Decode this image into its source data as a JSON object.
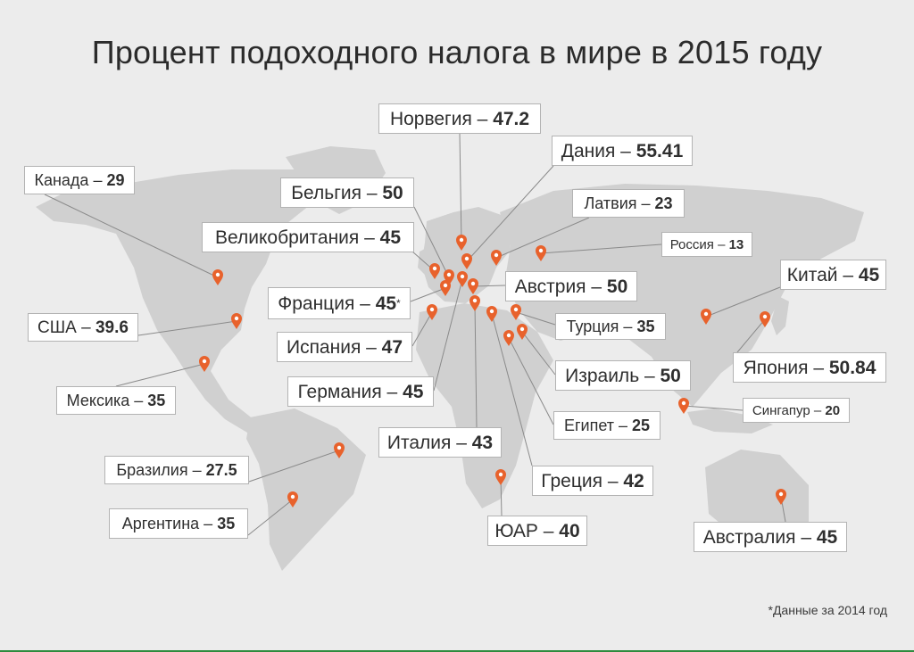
{
  "title": "Процент подоходного налога в мире в 2015 году",
  "footnote": "*Данные за 2014 год",
  "colors": {
    "background": "#ececec",
    "land": "#d0d0d0",
    "marker": "#e8622c",
    "leader": "#8a8a8a",
    "accent_line": "#2e8b3e"
  },
  "countries": [
    {
      "id": "norway",
      "name": "Норвегия",
      "value": "47.2",
      "marker": "map-pin-icon"
    },
    {
      "id": "denmark",
      "name": "Дания",
      "value": "55.41",
      "marker": "map-pin-icon"
    },
    {
      "id": "belgium",
      "name": "Бельгия",
      "value": "50",
      "marker": "map-pin-icon"
    },
    {
      "id": "latvia",
      "name": "Латвия",
      "value": "23",
      "marker": "map-pin-icon"
    },
    {
      "id": "uk",
      "name": "Великобритания",
      "value": "45",
      "marker": "map-pin-icon"
    },
    {
      "id": "russia",
      "name": "Россия",
      "value": "13",
      "marker": "map-pin-icon"
    },
    {
      "id": "canada",
      "name": "Канада",
      "value": "29",
      "marker": "map-pin-icon"
    },
    {
      "id": "china",
      "name": "Китай",
      "value": "45",
      "marker": "map-pin-icon"
    },
    {
      "id": "france",
      "name": "Франция",
      "value": "45",
      "note": "*",
      "marker": "map-pin-icon"
    },
    {
      "id": "austria",
      "name": "Австрия",
      "value": "50",
      "marker": "map-pin-icon"
    },
    {
      "id": "usa",
      "name": "США",
      "value": "39.6",
      "marker": "map-pin-icon"
    },
    {
      "id": "turkey",
      "name": "Турция",
      "value": "35",
      "marker": "map-pin-icon"
    },
    {
      "id": "spain",
      "name": "Испания",
      "value": "47",
      "marker": "map-pin-icon"
    },
    {
      "id": "japan",
      "name": "Япония",
      "value": "50.84",
      "marker": "map-pin-icon"
    },
    {
      "id": "israel",
      "name": "Израиль",
      "value": "50",
      "marker": "map-pin-icon"
    },
    {
      "id": "mexico",
      "name": "Мексика",
      "value": "35",
      "marker": "map-pin-icon"
    },
    {
      "id": "germany",
      "name": "Германия",
      "value": "45",
      "marker": "map-pin-icon"
    },
    {
      "id": "singapore",
      "name": "Сингапур",
      "value": "20",
      "marker": "map-pin-icon"
    },
    {
      "id": "egypt",
      "name": "Египет",
      "value": "25",
      "marker": "map-pin-icon"
    },
    {
      "id": "italy",
      "name": "Италия",
      "value": "43",
      "marker": "map-pin-icon"
    },
    {
      "id": "brazil",
      "name": "Бразилия",
      "value": "27.5",
      "marker": "map-pin-icon"
    },
    {
      "id": "greece",
      "name": "Греция",
      "value": "42",
      "marker": "map-pin-icon"
    },
    {
      "id": "argentina",
      "name": "Аргентина",
      "value": "35",
      "marker": "map-pin-icon"
    },
    {
      "id": "south-africa",
      "name": "ЮАР",
      "value": "40",
      "marker": "map-pin-icon"
    },
    {
      "id": "australia",
      "name": "Австралия",
      "value": "45",
      "marker": "map-pin-icon"
    }
  ]
}
